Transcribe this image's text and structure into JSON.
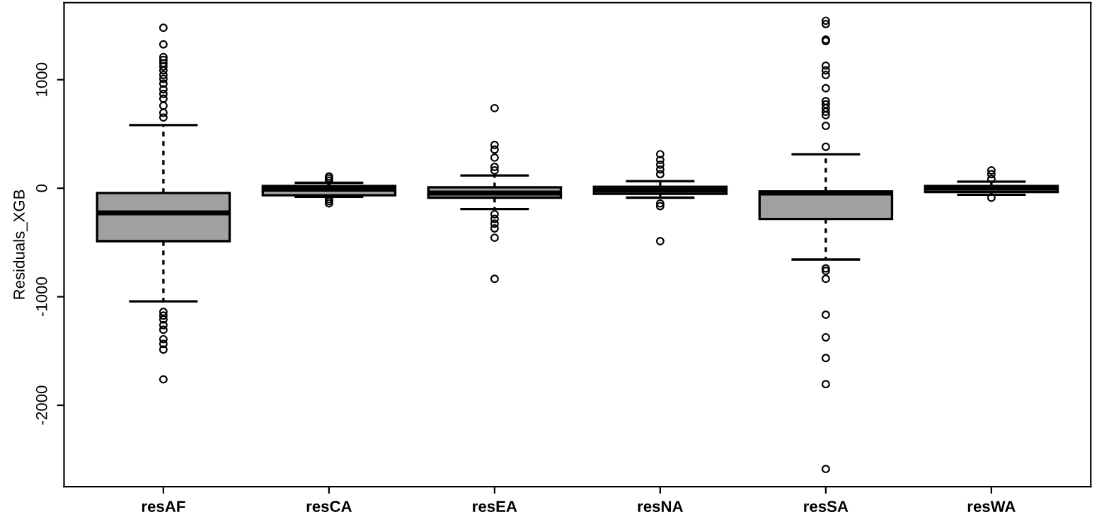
{
  "chart_data": {
    "type": "box",
    "ylabel": "Residuals_XGB",
    "categories": [
      "resAF",
      "resCA",
      "resEA",
      "resNA",
      "resSA",
      "resWA"
    ],
    "color": "#a0a0a0",
    "boxes": [
      {
        "low": -1043,
        "q1": -488,
        "median": -227,
        "q3": -44,
        "high": 582,
        "outliers": [
          1478,
          1326,
          1208,
          1182,
          1152,
          1122,
          1086,
          1043,
          1008,
          964,
          912,
          869,
          825,
          760,
          695,
          652,
          -1140,
          -1174,
          -1209,
          -1261,
          -1304,
          -1391,
          -1434,
          -1487,
          -1761
        ]
      },
      {
        "low": -80,
        "q1": -65,
        "median": -9,
        "q3": 21,
        "high": 50,
        "outliers": [
          108,
          90,
          70,
          -100,
          -120,
          -139
        ]
      },
      {
        "low": -192,
        "q1": -87,
        "median": -44,
        "q3": 8,
        "high": 117,
        "outliers": [
          738,
          399,
          356,
          282,
          196,
          164,
          -240,
          -283,
          -326,
          -370,
          -456,
          -835
        ]
      },
      {
        "low": -87,
        "q1": -52,
        "median": -18,
        "q3": 13,
        "high": 65,
        "outliers": [
          313,
          261,
          217,
          173,
          130,
          -140,
          -165,
          -488
        ]
      },
      {
        "low": -657,
        "q1": -283,
        "median": -44,
        "q3": -30,
        "high": 313,
        "outliers": [
          1543,
          1513,
          1369,
          1356,
          1129,
          1086,
          1043,
          921,
          803,
          773,
          738,
          704,
          673,
          574,
          382,
          -739,
          -762,
          -835,
          -1166,
          -1374,
          -1565,
          -1805,
          -2587
        ]
      },
      {
        "low": -60,
        "q1": -35,
        "median": 0,
        "q3": 21,
        "high": 60,
        "outliers": [
          164,
          130,
          86,
          -87
        ]
      }
    ],
    "ylim": [
      -2750,
      1710
    ],
    "yticks": [
      -2000,
      -1000,
      0,
      1000
    ],
    "grid": false,
    "legend": false
  }
}
